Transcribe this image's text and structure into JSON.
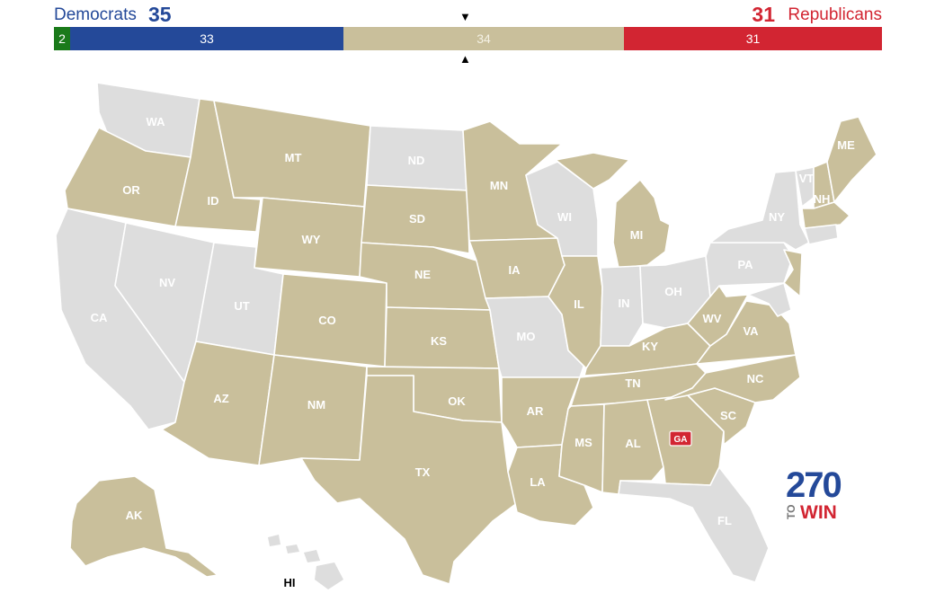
{
  "header": {
    "dem_label": "Democrats",
    "dem_total": "35",
    "rep_total": "31",
    "rep_label": "Republicans",
    "arrow_down": "▼",
    "arrow_up": "▲"
  },
  "bar": {
    "independent": {
      "count": "2",
      "value": 2,
      "color": "#1a7a1a"
    },
    "democrat": {
      "count": "33",
      "value": 33,
      "color": "#244999"
    },
    "tossup": {
      "count": "34",
      "value": 34,
      "color": "#c9bf9b"
    },
    "republican": {
      "count": "31",
      "value": 31,
      "color": "#d22532"
    }
  },
  "map": {
    "colors": {
      "tossup": "#c9bf9b",
      "no_race": "#dddddd",
      "border": "#ffffff"
    },
    "states": {
      "WA": "WA",
      "OR": "OR",
      "CA": "CA",
      "ID": "ID",
      "NV": "NV",
      "MT": "MT",
      "WY": "WY",
      "UT": "UT",
      "AZ": "AZ",
      "CO": "CO",
      "NM": "NM",
      "ND": "ND",
      "SD": "SD",
      "NE": "NE",
      "KS": "KS",
      "OK": "OK",
      "TX": "TX",
      "MN": "MN",
      "IA": "IA",
      "MO": "MO",
      "AR": "AR",
      "LA": "LA",
      "WI": "WI",
      "IL": "IL",
      "MI": "MI",
      "IN": "IN",
      "OH": "OH",
      "KY": "KY",
      "TN": "TN",
      "MS": "MS",
      "AL": "AL",
      "GA": "GA",
      "FL": "FL",
      "SC": "SC",
      "NC": "NC",
      "VA": "VA",
      "WV": "WV",
      "PA": "PA",
      "NY": "NY",
      "VT": "VT",
      "NH": "NH",
      "ME": "ME",
      "AK": "AK",
      "HI": "HI"
    },
    "ga_badge": "GA"
  },
  "logo": {
    "number": "270",
    "to": "TO",
    "win": "WIN"
  }
}
